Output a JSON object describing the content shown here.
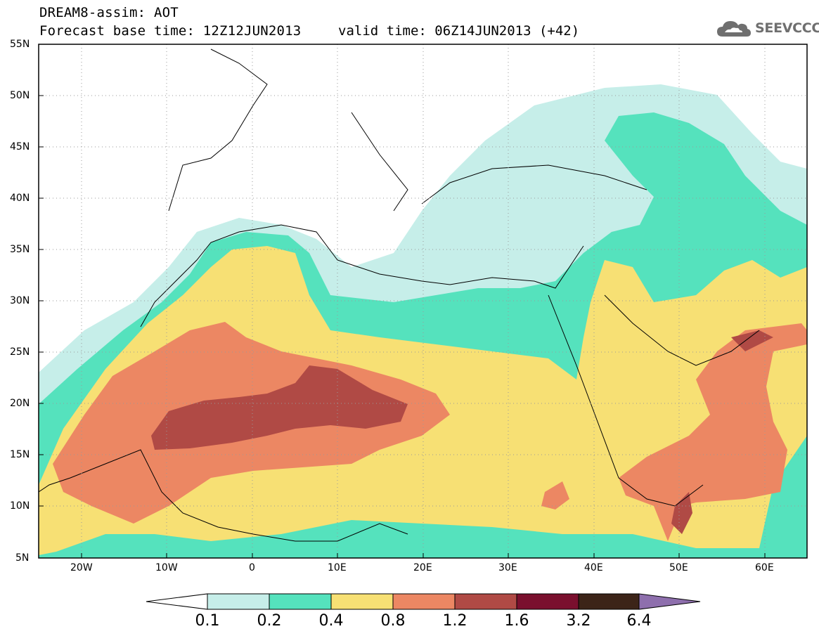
{
  "header": {
    "title": "DREAM8-assim: AOT",
    "base_time": "Forecast base time: 12Z12JUN2013",
    "valid_time": "valid time: 06Z14JUN2013 (+42)"
  },
  "logo": {
    "icon": "cloud-icon",
    "text": "SEEVCCC"
  },
  "map": {
    "lat_labels": [
      "55N",
      "50N",
      "45N",
      "40N",
      "35N",
      "30N",
      "25N",
      "20N",
      "15N",
      "10N",
      "5N"
    ],
    "lon_labels": [
      "20W",
      "10W",
      "0",
      "10E",
      "20E",
      "30E",
      "40E",
      "50E",
      "60E"
    ],
    "lat_range": [
      5,
      55
    ],
    "lon_range": [
      -25,
      65
    ]
  },
  "colorbar": {
    "levels": [
      "0.1",
      "0.2",
      "0.4",
      "0.8",
      "1.2",
      "1.6",
      "3.2",
      "6.4"
    ],
    "colors": [
      "#c6eee9",
      "#55e2bd",
      "#f7e074",
      "#ec8763",
      "#b04a45",
      "#7a0f2e",
      "#3c2418",
      "#8e6fad"
    ],
    "low_end_color": "#ffffff"
  }
}
